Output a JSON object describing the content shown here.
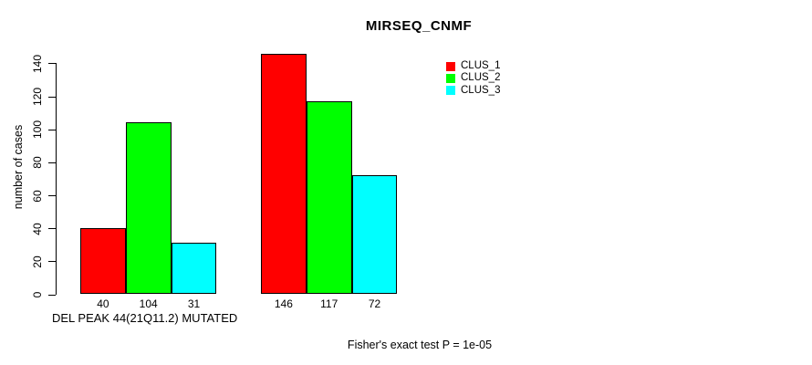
{
  "title": "MIRSEQ_CNMF",
  "y_axis": {
    "label": "number of cases",
    "ticks": [
      0,
      20,
      40,
      60,
      80,
      100,
      120,
      140
    ]
  },
  "x_axis": {
    "label": "DEL PEAK 44(21Q11.2) MUTATED"
  },
  "footnote": "Fisher's exact test P = 1e-05",
  "legend": {
    "entries": [
      {
        "label": "CLUS_1",
        "color": "#ff0000"
      },
      {
        "label": "CLUS_2",
        "color": "#00ff00"
      },
      {
        "label": "CLUS_3",
        "color": "#00ffff"
      }
    ]
  },
  "chart_data": {
    "type": "bar",
    "title": "MIRSEQ_CNMF",
    "xlabel": "DEL PEAK 44(21Q11.2) MUTATED",
    "ylabel": "number of cases",
    "ylim": [
      0,
      145
    ],
    "yticks": [
      0,
      20,
      40,
      60,
      80,
      100,
      120,
      140
    ],
    "grid": false,
    "legend_position": "inside-top-right",
    "bar_borders": "#000000",
    "groups": [
      {
        "name": "group-1",
        "label": "DEL PEAK 44(21Q11.2) MUTATED"
      },
      {
        "name": "group-2",
        "label": ""
      }
    ],
    "series": [
      {
        "name": "CLUS_1",
        "color": "#ff0000",
        "values": [
          40,
          146
        ]
      },
      {
        "name": "CLUS_2",
        "color": "#00ff00",
        "values": [
          104,
          117
        ]
      },
      {
        "name": "CLUS_3",
        "color": "#00ffff",
        "values": [
          31,
          72
        ]
      }
    ],
    "value_labels_shown": true
  }
}
